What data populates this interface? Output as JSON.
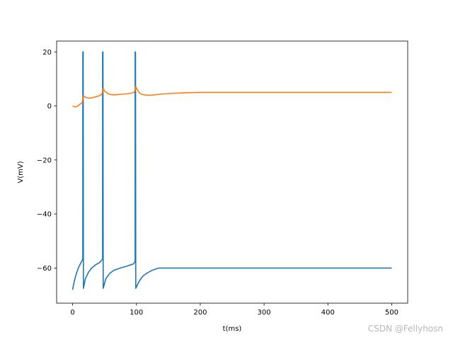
{
  "chart_data": {
    "type": "line",
    "xlabel": "t(ms)",
    "ylabel": "V(mV)",
    "xlim": [
      -25,
      525
    ],
    "ylim": [
      -73,
      24
    ],
    "xticks": [
      0,
      100,
      200,
      300,
      400,
      500
    ],
    "yticks": [
      -60,
      -40,
      -20,
      0,
      20
    ],
    "grid": false,
    "legend": "none",
    "series": [
      {
        "color": "#1f77b4",
        "x": [
          0,
          3,
          6,
          9,
          12,
          15,
          16,
          16.01,
          16.6,
          17,
          17.01,
          20,
          25,
          30,
          36,
          42,
          46,
          47,
          47.01,
          47.6,
          48,
          48.01,
          52,
          58,
          65,
          75,
          85,
          95,
          97,
          98,
          98.01,
          98.6,
          99,
          99.01,
          104,
          110,
          117,
          125,
          135,
          500
        ],
        "y": [
          -68,
          -64.5,
          -62,
          -60,
          -58.5,
          -57.2,
          -56.5,
          20,
          20,
          -67.5,
          -67.5,
          -64,
          -61.5,
          -60,
          -58.8,
          -58,
          -57,
          -56.5,
          20,
          20,
          -67.5,
          -67.5,
          -64,
          -62,
          -60.8,
          -60,
          -59.3,
          -58.5,
          -58,
          -57.5,
          20,
          20,
          -67.5,
          -67.5,
          -65,
          -63,
          -61.8,
          -60.8,
          -60,
          -60
        ]
      },
      {
        "color": "#ff7f0e",
        "x": [
          0,
          4,
          8,
          12,
          15,
          16,
          17,
          20,
          25,
          30,
          35,
          40,
          44,
          46,
          47,
          48,
          50,
          55,
          60,
          65,
          70,
          80,
          90,
          96,
          98,
          99,
          101,
          104,
          108,
          115,
          125,
          140,
          160,
          180,
          200,
          250,
          300,
          400,
          500
        ],
        "y": [
          0,
          -0.4,
          0,
          0.7,
          1.2,
          2.5,
          3.8,
          3.2,
          2.9,
          3.0,
          3.3,
          3.6,
          4.0,
          4.5,
          5.5,
          6.5,
          5.5,
          4.6,
          4.2,
          4.1,
          4.2,
          4.4,
          4.6,
          5.0,
          5.8,
          7.2,
          6.2,
          5.0,
          4.3,
          4.0,
          4.0,
          4.4,
          4.7,
          4.9,
          5.0,
          5.0,
          5.0,
          5.0,
          5.0
        ]
      }
    ]
  },
  "watermark": "CSDN @Fellyhosn"
}
